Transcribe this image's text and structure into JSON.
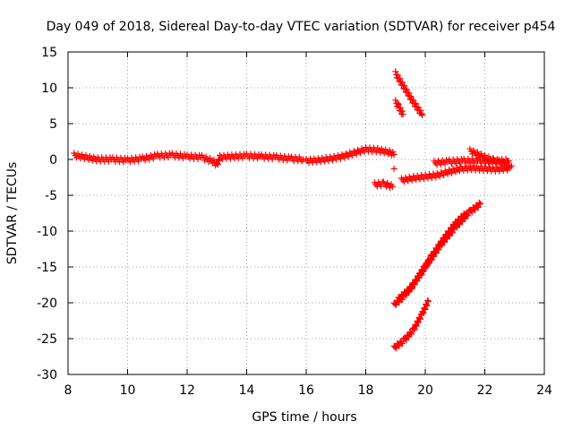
{
  "chart_data": {
    "type": "scatter",
    "title": "Day 049 of 2018, Sidereal Day-to-day VTEC variation (SDTVAR) for receiver p454",
    "xlabel": "GPS time / hours",
    "ylabel": "SDTVAR / TECUs",
    "xlim": [
      8,
      24
    ],
    "ylim": [
      -30,
      15
    ],
    "xticks": [
      "8",
      "10",
      "12",
      "14",
      "16",
      "18",
      "20",
      "22",
      "24"
    ],
    "yticks": [
      "15",
      "10",
      "5",
      "0",
      "-5",
      "-10",
      "-15",
      "-20",
      "-25",
      "-30"
    ],
    "grid": true,
    "marker_color": "#ff0000",
    "segments": [
      {
        "x": [
          8.2,
          8.6,
          9.0,
          9.5,
          10.0,
          10.5,
          11.0,
          11.5,
          12.0,
          12.5,
          12.9,
          13.0,
          13.1,
          13.5,
          14.0,
          14.5,
          15.0,
          15.5,
          15.9
        ],
        "y": [
          0.6,
          0.3,
          0.0,
          0.0,
          -0.1,
          0.1,
          0.5,
          0.6,
          0.4,
          0.3,
          -0.3,
          -0.8,
          0.3,
          0.4,
          0.5,
          0.4,
          0.3,
          0.1,
          0.0
        ]
      },
      {
        "x": [
          16.0,
          16.4,
          16.8,
          17.2,
          17.6,
          18.0,
          18.4,
          18.8,
          18.95
        ],
        "y": [
          -0.2,
          -0.1,
          0.1,
          0.4,
          0.9,
          1.4,
          1.3,
          1.0,
          0.7
        ]
      },
      {
        "x": [
          18.3,
          18.6,
          18.9
        ],
        "y": [
          -3.5,
          -3.4,
          -3.8
        ]
      },
      {
        "x": [
          18.95
        ],
        "y": [
          -1.3
        ]
      },
      {
        "x": [
          19.2,
          19.6,
          20.0,
          20.4,
          20.8,
          21.2,
          21.6,
          22.0,
          22.4,
          22.8
        ],
        "y": [
          -2.9,
          -2.6,
          -2.4,
          -2.2,
          -1.7,
          -1.3,
          -1.2,
          -1.3,
          -1.4,
          -1.2
        ]
      },
      {
        "x": [
          20.3,
          20.8,
          21.3,
          21.8,
          22.3,
          22.8
        ],
        "y": [
          -0.5,
          -0.3,
          -0.2,
          -0.2,
          -0.3,
          -0.2
        ]
      },
      {
        "x": [
          21.5,
          22.0,
          22.5,
          22.9
        ],
        "y": [
          1.2,
          0.3,
          -0.4,
          -0.9
        ]
      },
      {
        "x": [
          19.0,
          19.3,
          19.6,
          19.9
        ],
        "y": [
          12.0,
          10.0,
          8.0,
          6.2
        ]
      },
      {
        "x": [
          19.0,
          19.1,
          19.25
        ],
        "y": [
          8.0,
          7.4,
          6.3
        ]
      },
      {
        "x": [
          18.95,
          19.3,
          19.6,
          20.0,
          20.5,
          21.0,
          21.5,
          21.85
        ],
        "y": [
          -20.3,
          -19.0,
          -17.5,
          -15.0,
          -12.0,
          -9.5,
          -7.3,
          -6.2
        ]
      },
      {
        "x": [
          19.1,
          19.5,
          19.8,
          20.2,
          20.6,
          21.0,
          21.4
        ],
        "y": [
          -19.5,
          -18.0,
          -16.2,
          -13.6,
          -11.2,
          -9.0,
          -7.4
        ]
      },
      {
        "x": [
          18.95,
          19.3,
          19.6,
          19.9,
          20.1
        ],
        "y": [
          -26.3,
          -25.2,
          -23.8,
          -21.5,
          -19.8
        ]
      }
    ]
  }
}
